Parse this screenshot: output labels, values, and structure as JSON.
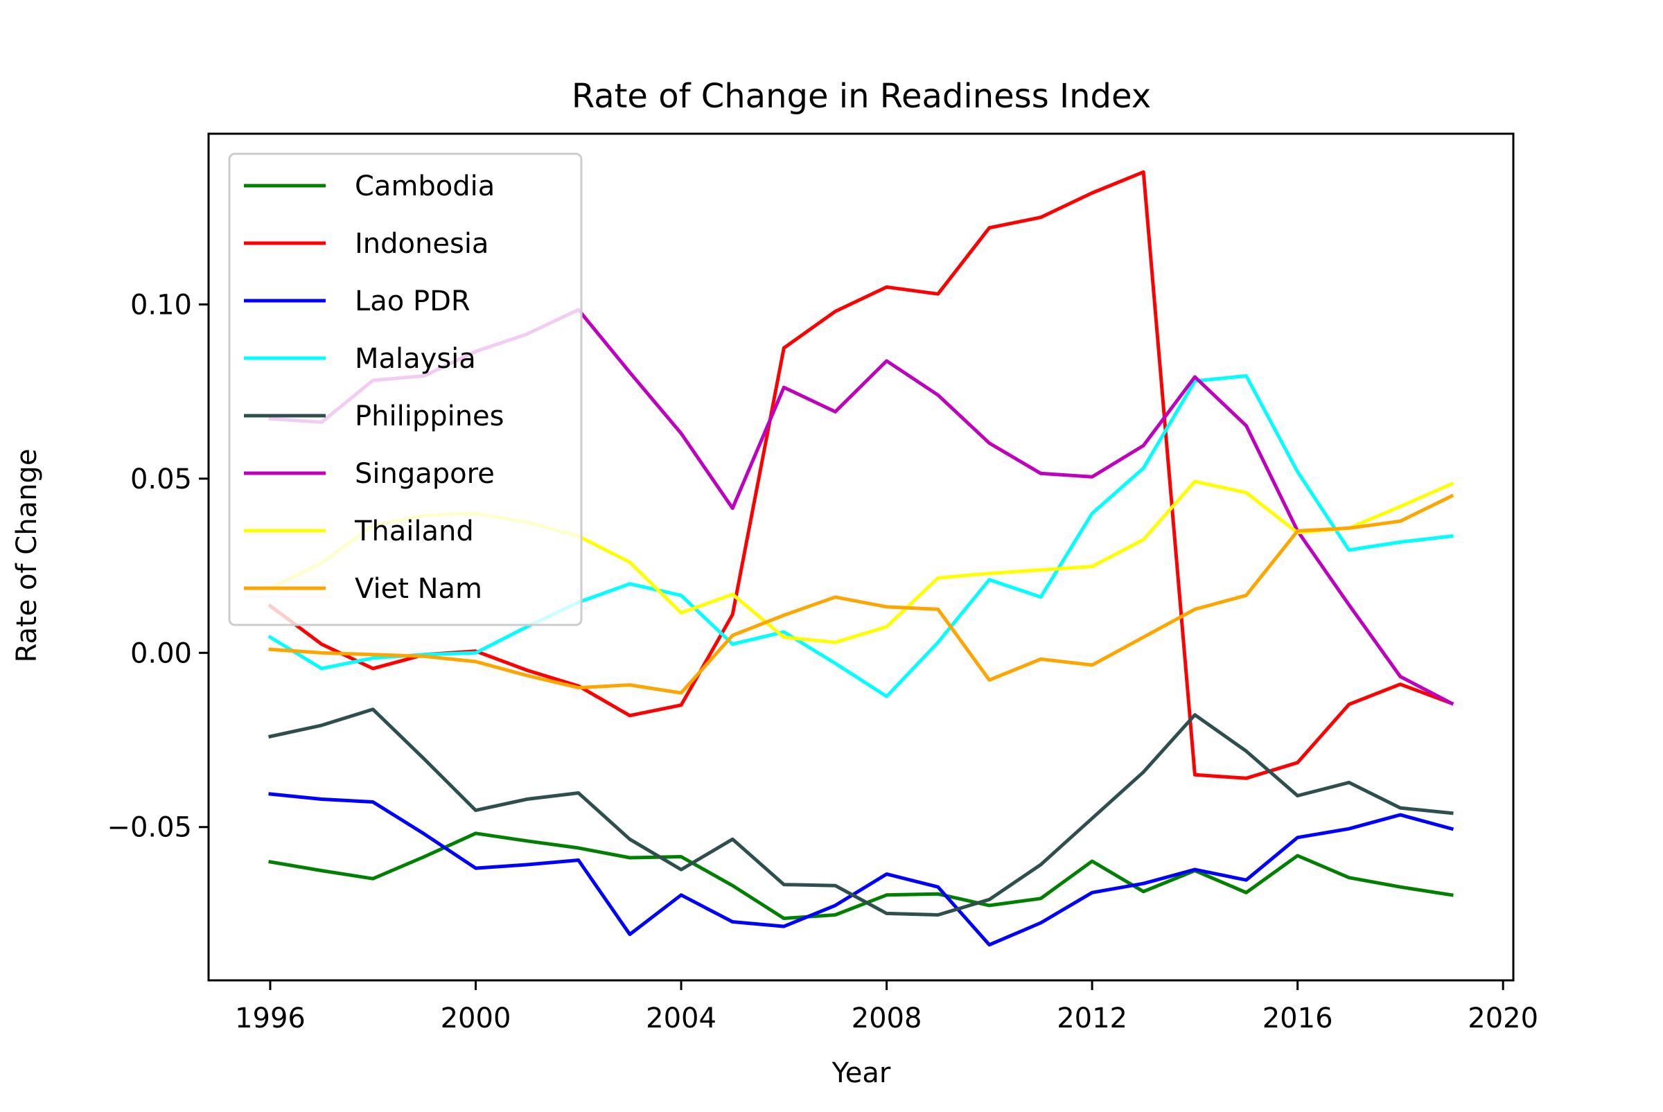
{
  "chart_data": {
    "type": "line",
    "title": "Rate of Change in Readiness Index",
    "xlabel": "Year",
    "ylabel": "Rate of Change",
    "xlim": [
      1994.8,
      2020.2
    ],
    "ylim": [
      -0.094,
      0.149
    ],
    "xticks": [
      1996,
      2000,
      2004,
      2008,
      2012,
      2016,
      2020
    ],
    "yticks": [
      -0.05,
      0.0,
      0.05,
      0.1
    ],
    "ytick_labels": [
      "−0.05",
      "0.00",
      "0.05",
      "0.10"
    ],
    "grid": false,
    "legend_position": "upper-left",
    "x": [
      1996,
      1997,
      1998,
      1999,
      2000,
      2001,
      2002,
      2003,
      2004,
      2005,
      2006,
      2007,
      2008,
      2009,
      2010,
      2011,
      2012,
      2013,
      2014,
      2015,
      2016,
      2017,
      2018,
      2019
    ],
    "series": [
      {
        "name": "Cambodia",
        "color": "#008000",
        "values": [
          -0.06,
          -0.0625,
          -0.0648,
          -0.0585,
          -0.0518,
          -0.054,
          -0.056,
          -0.0588,
          -0.0585,
          -0.0668,
          -0.0762,
          -0.0752,
          -0.0695,
          -0.0692,
          -0.0725,
          -0.0705,
          -0.0598,
          -0.0685,
          -0.0625,
          -0.0688,
          -0.0582,
          -0.0645,
          -0.0672,
          -0.0695
        ]
      },
      {
        "name": "Indonesia",
        "color": "#ff0000",
        "values": [
          0.0135,
          0.0025,
          -0.0045,
          -0.0005,
          0.0005,
          -0.005,
          -0.0095,
          -0.018,
          -0.015,
          0.011,
          0.0875,
          0.098,
          0.105,
          0.103,
          0.122,
          0.125,
          0.132,
          0.138,
          -0.035,
          -0.036,
          -0.0315,
          -0.0148,
          -0.009,
          -0.0145
        ]
      },
      {
        "name": "Lao PDR",
        "color": "#0000ff",
        "values": [
          -0.0405,
          -0.042,
          -0.0428,
          -0.052,
          -0.0618,
          -0.0608,
          -0.0595,
          -0.0808,
          -0.0695,
          -0.0772,
          -0.0785,
          -0.0725,
          -0.0635,
          -0.0672,
          -0.0838,
          -0.0775,
          -0.0688,
          -0.0662,
          -0.0622,
          -0.0652,
          -0.053,
          -0.0505,
          -0.0465,
          -0.0505
        ]
      },
      {
        "name": "Malaysia",
        "color": "#00ffff",
        "values": [
          0.0045,
          -0.0045,
          -0.0015,
          -0.0005,
          0.0,
          0.0075,
          0.0145,
          0.0198,
          0.0165,
          0.0025,
          0.006,
          -0.003,
          -0.0125,
          0.003,
          0.021,
          0.016,
          0.04,
          0.053,
          0.078,
          0.0795,
          0.052,
          0.0295,
          0.0318,
          0.0335
        ]
      },
      {
        "name": "Philippines",
        "color": "#2f4f4f",
        "values": [
          -0.024,
          -0.0208,
          -0.0162,
          -0.0305,
          -0.0452,
          -0.042,
          -0.0402,
          -0.0535,
          -0.0622,
          -0.0535,
          -0.0665,
          -0.0668,
          -0.0748,
          -0.0752,
          -0.0708,
          -0.0608,
          -0.0475,
          -0.0342,
          -0.0178,
          -0.0282,
          -0.041,
          -0.0372,
          -0.0445,
          -0.046
        ]
      },
      {
        "name": "Singapore",
        "color": "#bf00bf",
        "values": [
          0.0672,
          0.0662,
          0.0782,
          0.0795,
          0.0865,
          0.0915,
          0.0985,
          0.0805,
          0.063,
          0.0415,
          0.0762,
          0.0692,
          0.0838,
          0.074,
          0.0602,
          0.0515,
          0.0505,
          0.0595,
          0.0792,
          0.0652,
          0.035,
          0.0138,
          -0.0068,
          -0.0145
        ]
      },
      {
        "name": "Thailand",
        "color": "#ffff00",
        "values": [
          0.0185,
          0.0258,
          0.0365,
          0.0395,
          0.04,
          0.0375,
          0.0335,
          0.026,
          0.0115,
          0.0168,
          0.0045,
          0.003,
          0.0075,
          0.0215,
          0.0228,
          0.0238,
          0.0248,
          0.0325,
          0.0492,
          0.046,
          0.0345,
          0.0358,
          0.042,
          0.0485
        ]
      },
      {
        "name": "Viet Nam",
        "color": "#ffa500",
        "values": [
          0.001,
          0.0,
          -0.0005,
          -0.001,
          -0.0025,
          -0.0065,
          -0.01,
          -0.0092,
          -0.0115,
          0.005,
          0.0108,
          0.016,
          0.0132,
          0.0125,
          -0.0078,
          -0.0018,
          -0.0035,
          0.0045,
          0.0125,
          0.0165,
          0.035,
          0.0358,
          0.0378,
          0.045
        ]
      }
    ]
  }
}
